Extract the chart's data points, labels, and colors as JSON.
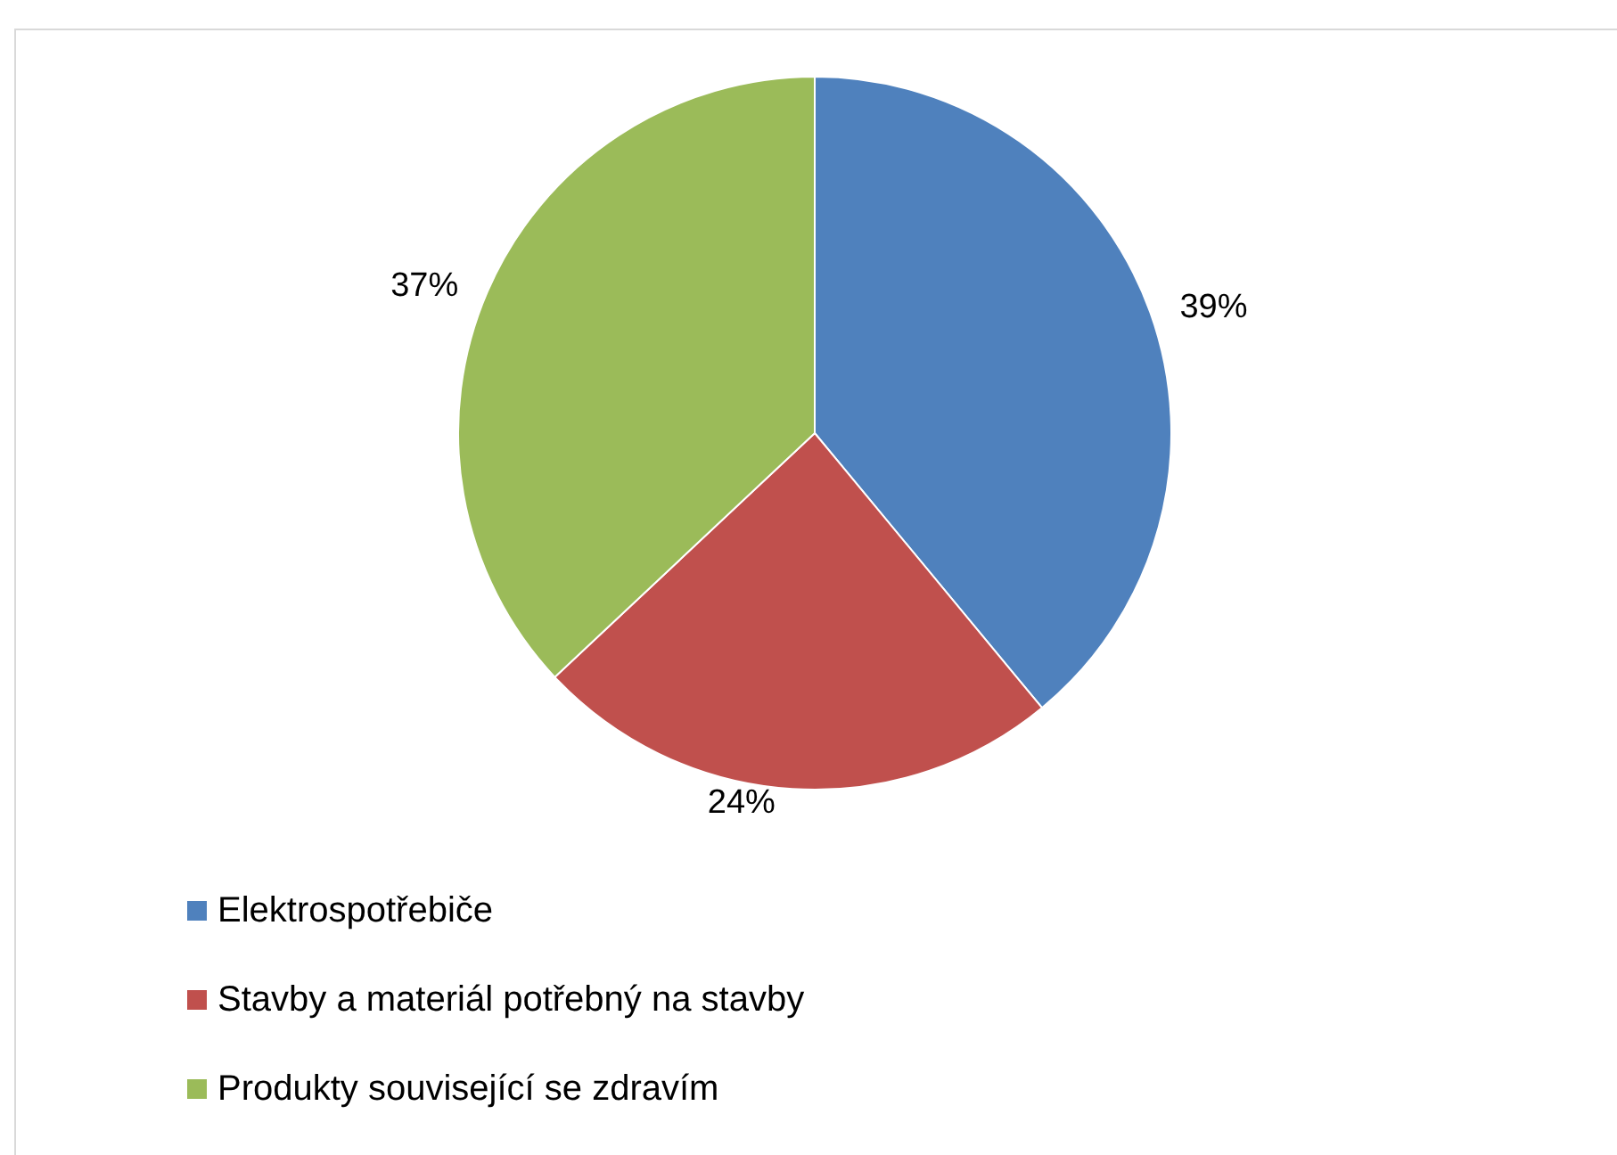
{
  "chart_data": {
    "type": "pie",
    "categories": [
      "Elektrospotřebiče",
      "Stavby a materiál potřebný na stavby",
      "Produkty související se zdravím"
    ],
    "values": [
      39,
      24,
      37
    ],
    "colors": [
      "#4f81bd",
      "#c0504d",
      "#9bbb59"
    ],
    "value_labels": [
      "39%",
      "24%",
      "37%"
    ],
    "legend": "bottom left"
  }
}
